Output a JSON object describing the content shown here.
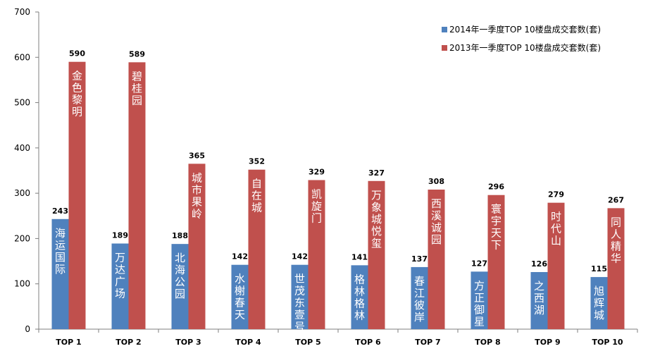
{
  "chart_data": {
    "type": "bar",
    "categories": [
      "TOP 1",
      "TOP 2",
      "TOP 3",
      "TOP 4",
      "TOP 5",
      "TOP 6",
      "TOP 7",
      "TOP 8",
      "TOP 9",
      "TOP 10"
    ],
    "ylim": [
      0,
      700
    ],
    "yticks": [
      0,
      100,
      200,
      300,
      400,
      500,
      600,
      700
    ],
    "grid": false,
    "legend_position": "top-right",
    "series": [
      {
        "name": "2014年一季度TOP 10楼盘成交套数(套)",
        "color": "#4f81bd",
        "values": [
          243,
          189,
          188,
          142,
          142,
          141,
          137,
          127,
          126,
          115
        ],
        "bar_labels": [
          "海运国际",
          "万达广场",
          "北海公园",
          "水榭春天",
          "世茂东壹号",
          "格林格林",
          "春江彼岸",
          "方正御星",
          "之西湖",
          "旭辉城"
        ]
      },
      {
        "name": "2013年一季度TOP 10楼盘成交套数(套)",
        "color": "#c0504d",
        "values": [
          590,
          589,
          365,
          352,
          329,
          327,
          308,
          296,
          279,
          267
        ],
        "bar_labels": [
          "金色黎明",
          "碧桂园",
          "城市果岭",
          "自在城",
          "凯旋门",
          "万象城悦玺",
          "西溪诚园",
          "寰宇天下",
          "时代山",
          "同人精华"
        ]
      }
    ]
  }
}
